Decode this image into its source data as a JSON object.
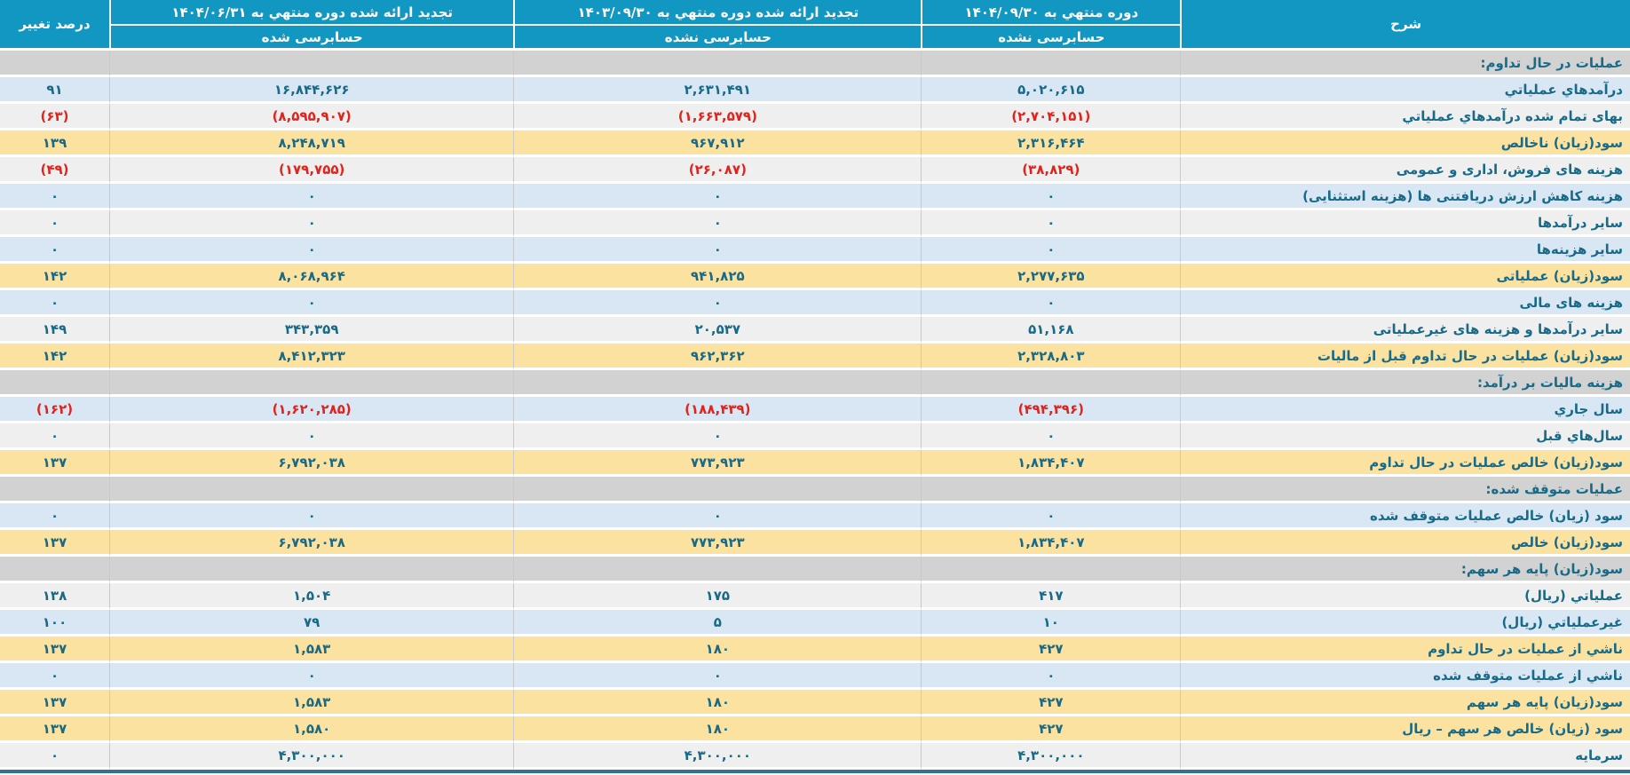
{
  "table": {
    "header": {
      "description": "شرح",
      "current": {
        "title": "دوره منتهي به ۱۴۰۴/۰۹/۳۰",
        "audit_status": "حسابرسی نشده"
      },
      "previous": {
        "title": "تجدید ارائه شده دوره منتهي به ۱۴۰۳/۰۹/۳۰",
        "audit_status": "حسابرسی نشده"
      },
      "audited": {
        "title": "تجدید ارائه شده دوره منتهي به ۱۴۰۴/۰۶/۳۱",
        "audit_status": "حسابرسی شده"
      },
      "percent": "درصد تغییر"
    },
    "rows": [
      {
        "type": "section",
        "variant": "section",
        "label": "عملیات در حال تداوم:",
        "cur": "",
        "prev": "",
        "audited": "",
        "pct": ""
      },
      {
        "type": "data",
        "variant": "blue",
        "label": "درآمدهاي عملياتي",
        "cur": "۵,۰۲۰,۶۱۵",
        "prev": "۲,۶۳۱,۴۹۱",
        "audited": "۱۶,۸۴۴,۶۲۶",
        "pct": "۹۱"
      },
      {
        "type": "data",
        "variant": "gray",
        "label": "بهای تمام شده درآمدهاي عملياتي",
        "cur": "(۲,۷۰۴,۱۵۱)",
        "prev": "(۱,۶۶۳,۵۷۹)",
        "audited": "(۸,۵۹۵,۹۰۷)",
        "pct": "(۶۳)"
      },
      {
        "type": "data",
        "variant": "yellow",
        "label": "سود(زيان) ناخالص",
        "cur": "۲,۳۱۶,۴۶۴",
        "prev": "۹۶۷,۹۱۲",
        "audited": "۸,۲۴۸,۷۱۹",
        "pct": "۱۳۹"
      },
      {
        "type": "data",
        "variant": "gray",
        "label": "هزینه های فروش، اداری و عمومی",
        "cur": "(۳۸,۸۲۹)",
        "prev": "(۲۶,۰۸۷)",
        "audited": "(۱۷۹,۷۵۵)",
        "pct": "(۴۹)"
      },
      {
        "type": "data",
        "variant": "blue",
        "label": "هزینه کاهش ارزش دریافتنی ها (هزینه استثنایی)",
        "cur": "۰",
        "prev": "۰",
        "audited": "۰",
        "pct": "۰"
      },
      {
        "type": "data",
        "variant": "gray",
        "label": "سایر درآمدها",
        "cur": "۰",
        "prev": "۰",
        "audited": "۰",
        "pct": "۰"
      },
      {
        "type": "data",
        "variant": "blue",
        "label": "سایر هزینه‌ها",
        "cur": "۰",
        "prev": "۰",
        "audited": "۰",
        "pct": "۰"
      },
      {
        "type": "data",
        "variant": "yellow",
        "label": "سود(زیان) عملیاتی",
        "cur": "۲,۲۷۷,۶۳۵",
        "prev": "۹۴۱,۸۲۵",
        "audited": "۸,۰۶۸,۹۶۴",
        "pct": "۱۴۲"
      },
      {
        "type": "data",
        "variant": "blue",
        "label": "هزینه های مالی",
        "cur": "۰",
        "prev": "۰",
        "audited": "۰",
        "pct": "۰"
      },
      {
        "type": "data",
        "variant": "gray",
        "label": "سایر درآمدها و هزینه های غیرعملیاتی",
        "cur": "۵۱,۱۶۸",
        "prev": "۲۰,۵۳۷",
        "audited": "۳۴۳,۳۵۹",
        "pct": "۱۴۹"
      },
      {
        "type": "data",
        "variant": "yellow",
        "label": "سود(زیان) عملیات در حال تداوم قبل از مالیات",
        "cur": "۲,۳۲۸,۸۰۳",
        "prev": "۹۶۲,۳۶۲",
        "audited": "۸,۴۱۲,۳۲۳",
        "pct": "۱۴۲"
      },
      {
        "type": "section",
        "variant": "section",
        "label": "هزینه مالیات بر درآمد:",
        "cur": "",
        "prev": "",
        "audited": "",
        "pct": ""
      },
      {
        "type": "data",
        "variant": "blue",
        "label": "سال جاري",
        "cur": "(۴۹۴,۳۹۶)",
        "prev": "(۱۸۸,۴۳۹)",
        "audited": "(۱,۶۲۰,۲۸۵)",
        "pct": "(۱۶۲)"
      },
      {
        "type": "data",
        "variant": "gray",
        "label": "سال‌هاي قبل",
        "cur": "۰",
        "prev": "۰",
        "audited": "۰",
        "pct": "۰"
      },
      {
        "type": "data",
        "variant": "yellow",
        "label": "سود(زیان) خالص عملیات در حال تداوم",
        "cur": "۱,۸۳۴,۴۰۷",
        "prev": "۷۷۳,۹۲۳",
        "audited": "۶,۷۹۲,۰۳۸",
        "pct": "۱۳۷"
      },
      {
        "type": "section",
        "variant": "section",
        "label": "عملیات متوقف شده:",
        "cur": "",
        "prev": "",
        "audited": "",
        "pct": ""
      },
      {
        "type": "data",
        "variant": "blue",
        "label": "سود (زیان) خالص عملیات متوقف شده",
        "cur": "۰",
        "prev": "۰",
        "audited": "۰",
        "pct": "۰"
      },
      {
        "type": "data",
        "variant": "yellow",
        "label": "سود(زیان) خالص",
        "cur": "۱,۸۳۴,۴۰۷",
        "prev": "۷۷۳,۹۲۳",
        "audited": "۶,۷۹۲,۰۳۸",
        "pct": "۱۳۷"
      },
      {
        "type": "section",
        "variant": "section",
        "label": "سود(زیان) پایه هر سهم:",
        "cur": "",
        "prev": "",
        "audited": "",
        "pct": ""
      },
      {
        "type": "data",
        "variant": "gray",
        "label": "عملياتي (ريال)",
        "cur": "۴۱۷",
        "prev": "۱۷۵",
        "audited": "۱,۵۰۴",
        "pct": "۱۳۸"
      },
      {
        "type": "data",
        "variant": "blue",
        "label": "غیرعملياتي (ريال)",
        "cur": "۱۰",
        "prev": "۵",
        "audited": "۷۹",
        "pct": "۱۰۰"
      },
      {
        "type": "data",
        "variant": "yellow",
        "label": "ناشي از عملیات در حال تداوم",
        "cur": "۴۲۷",
        "prev": "۱۸۰",
        "audited": "۱,۵۸۳",
        "pct": "۱۳۷"
      },
      {
        "type": "data",
        "variant": "blue",
        "label": "ناشي از عملیات متوقف شده",
        "cur": "۰",
        "prev": "۰",
        "audited": "۰",
        "pct": "۰"
      },
      {
        "type": "data",
        "variant": "yellow",
        "label": "سود(زیان) پایه هر سهم",
        "cur": "۴۲۷",
        "prev": "۱۸۰",
        "audited": "۱,۵۸۳",
        "pct": "۱۳۷"
      },
      {
        "type": "data",
        "variant": "yellow",
        "label": "سود (زیان) خالص هر سهم – ریال",
        "cur": "۴۲۷",
        "prev": "۱۸۰",
        "audited": "۱,۵۸۰",
        "pct": "۱۳۷"
      },
      {
        "type": "data",
        "variant": "gray",
        "label": "سرمایه",
        "cur": "۴,۳۰۰,۰۰۰",
        "prev": "۴,۳۰۰,۰۰۰",
        "audited": "۴,۳۰۰,۰۰۰",
        "pct": "۰"
      }
    ],
    "colors": {
      "header_teal": "#1296c2",
      "row_blue": "#d9e7f5",
      "row_gray": "#efefef",
      "row_yellow": "#fce2a0",
      "row_section": "#d2d2d2",
      "text": "#176a88",
      "negative": "#e3221c",
      "bottom_bar": "#2f7392"
    }
  }
}
